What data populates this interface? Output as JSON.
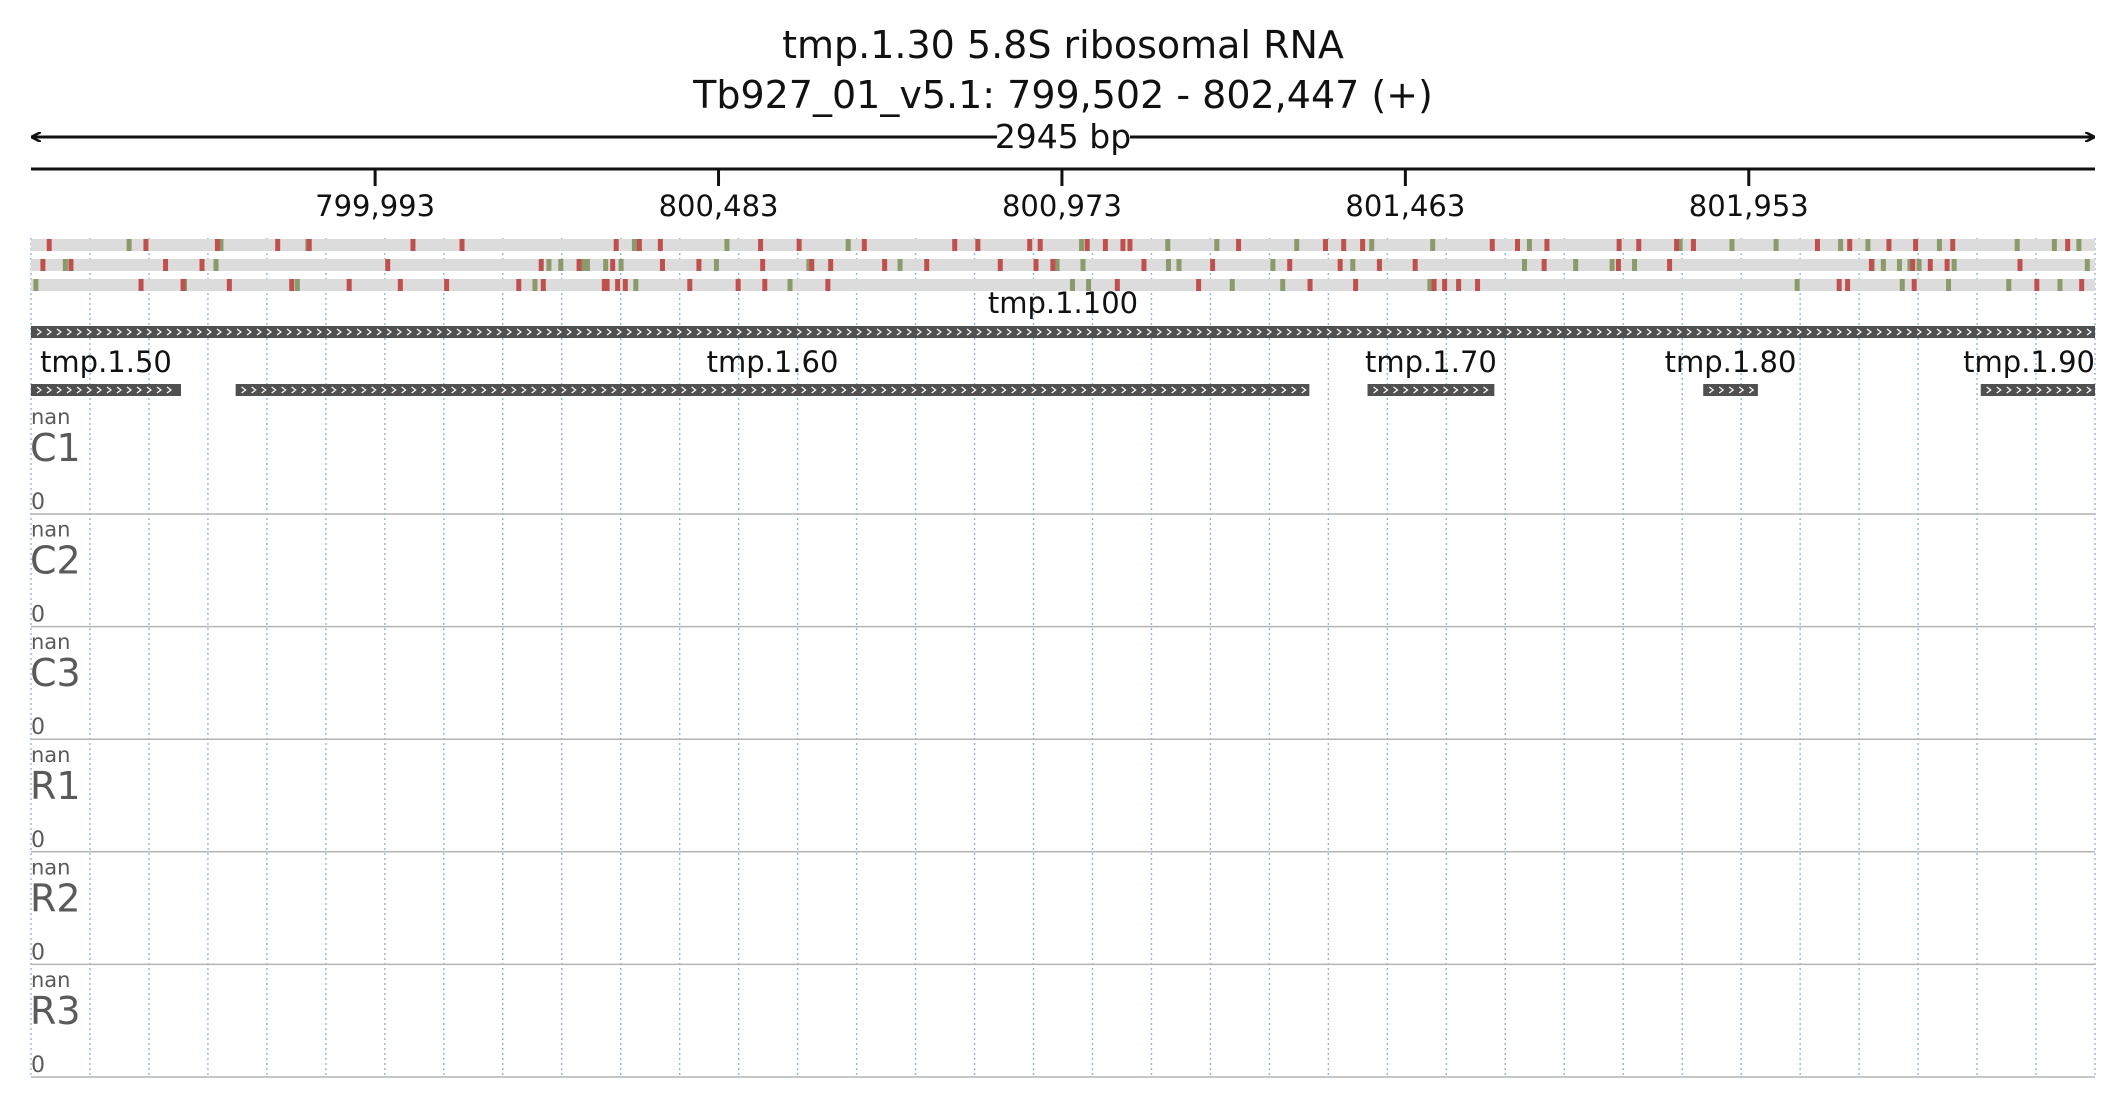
{
  "title": {
    "line1": "tmp.1.30  5.8S ribosomal RNA",
    "line2": "Tb927_01_v5.1: 799,502 - 802,447 (+)"
  },
  "span": {
    "label": "2945 bp"
  },
  "region": {
    "start": 799502,
    "end": 802447
  },
  "ruler": {
    "ticks": [
      {
        "pos": 799993,
        "label": "799,993"
      },
      {
        "pos": 800483,
        "label": "800,483"
      },
      {
        "pos": 800973,
        "label": "800,973"
      },
      {
        "pos": 801463,
        "label": "801,463"
      },
      {
        "pos": 801953,
        "label": "801,953"
      }
    ]
  },
  "codon_tracks": {
    "colors": {
      "background": "#dcdcdc",
      "start": "#8a9a6a",
      "stop": "#c0504d"
    },
    "frames": [
      {
        "stop": [
          799528,
          799666,
          799768,
          799854,
          799899,
          800047,
          800117,
          800337,
          800370,
          800400,
          800543,
          800598,
          800691,
          800820,
          800853,
          800927,
          800942,
          801009,
          801035,
          801060,
          801070,
          801225,
          801349,
          801375,
          801402,
          801587,
          801623,
          801665,
          801768,
          801796,
          801850,
          801874,
          802051,
          802097,
          802153,
          802191,
          802244,
          802408
        ],
        "start": [
          799642,
          799773,
          799897,
          800363,
          800495,
          800668,
          801001,
          801124,
          801194,
          801308,
          801415,
          801502,
          801640,
          801855,
          801929,
          801992,
          802084,
          802123,
          802225,
          802336,
          802389,
          802424
        ]
      },
      {
        "stop": [
          799519,
          799559,
          799694,
          799746,
          800011,
          800230,
          800284,
          800332,
          800403,
          800455,
          800546,
          800616,
          800643,
          800720,
          800780,
          800885,
          800936,
          800960,
          801090,
          801188,
          801298,
          801370,
          801426,
          801477,
          801661,
          801767,
          801840,
          802128,
          802187,
          802212,
          802236,
          802340
        ],
        "start": [
          799551,
          799766,
          800241,
          800258,
          800289,
          800296,
          800322,
          800344,
          800480,
          800612,
          800742,
          800966,
          801003,
          801125,
          801140,
          801274,
          801388,
          801633,
          801706,
          801758,
          801790,
          802129,
          802145,
          802168,
          802183,
          802196,
          802246,
          802436
        ]
      },
      {
        "stop": [
          799659,
          799719,
          799785,
          799874,
          799956,
          800029,
          800095,
          800198,
          800233,
          800320,
          800324,
          800339,
          800350,
          800442,
          800511,
          800549,
          800639,
          801052,
          801168,
          801327,
          801392,
          801504,
          801519,
          801539,
          801566,
          802082,
          802094,
          802189,
          802364,
          802428
        ],
        "start": [
          799509,
          799721,
          799882,
          800221,
          800365,
          800585,
          800988,
          801011,
          801216,
          801288,
          801498,
          802022,
          802172,
          802238,
          802324,
          802397
        ]
      }
    ]
  },
  "genes": [
    {
      "id": "tmp.1.100",
      "start": 799502,
      "end": 802447,
      "row": 0,
      "label_anchor": "middle"
    },
    {
      "id": "tmp.1.50",
      "start": 799502,
      "end": 799716,
      "row": 1,
      "label_anchor": "middle"
    },
    {
      "id": "tmp.1.60",
      "start": 799794,
      "end": 801326,
      "row": 1,
      "label_anchor": "middle"
    },
    {
      "id": "tmp.1.70",
      "start": 801409,
      "end": 801590,
      "row": 1,
      "label_anchor": "middle"
    },
    {
      "id": "tmp.1.80",
      "start": 801888,
      "end": 801966,
      "row": 1,
      "label_anchor": "middle"
    },
    {
      "id": "tmp.1.90",
      "start": 802284,
      "end": 802447,
      "row": 1,
      "label_anchor": "end"
    }
  ],
  "coverage_tracks": [
    {
      "name": "C1",
      "max_label": "nan",
      "min_label": "0"
    },
    {
      "name": "C2",
      "max_label": "nan",
      "min_label": "0"
    },
    {
      "name": "C3",
      "max_label": "nan",
      "min_label": "0"
    },
    {
      "name": "R1",
      "max_label": "nan",
      "min_label": "0"
    },
    {
      "name": "R2",
      "max_label": "nan",
      "min_label": "0"
    },
    {
      "name": "R3",
      "max_label": "nan",
      "min_label": "0"
    }
  ],
  "colors": {
    "text": "#111111",
    "track_label": "#5a5a5a",
    "gene_bar": "#505050",
    "grid": "#8fb6dd",
    "separator": "#b4b4b4"
  }
}
